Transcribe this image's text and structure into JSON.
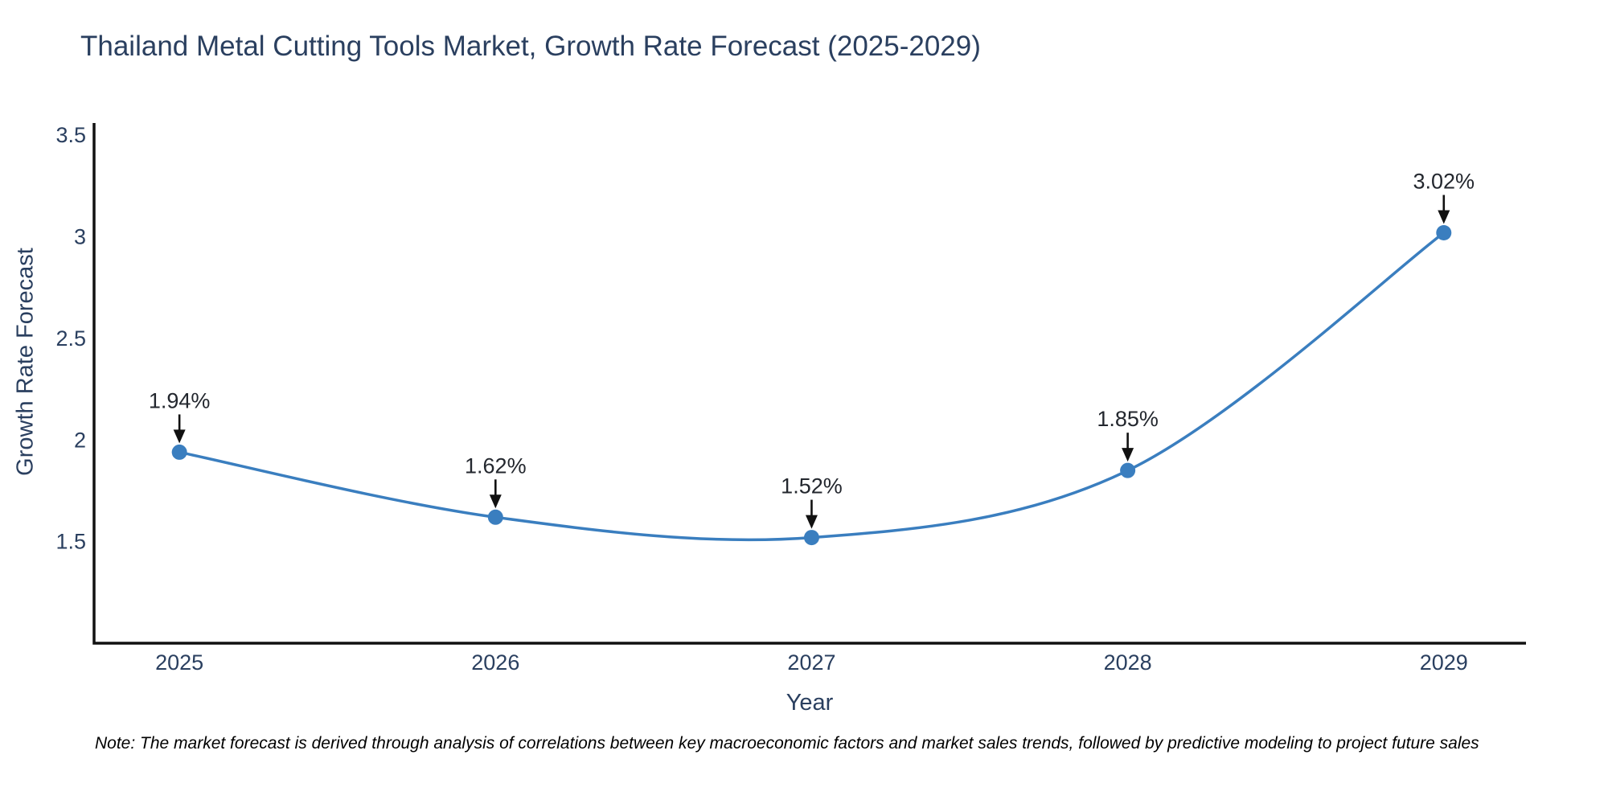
{
  "header": {
    "title": "Thailand Metal Cutting Tools Market, Growth Rate Forecast (2025-2029)"
  },
  "footnote": {
    "text": "Note: The market forecast is derived through analysis of correlations between key macroeconomic factors and market sales trends, followed by predictive modeling to project future sales"
  },
  "chart_data": {
    "type": "line",
    "line_shape": "spline",
    "title": "Thailand Metal Cutting Tools Market, Growth Rate Forecast (2025-2029)",
    "xlabel": "Year",
    "ylabel": "Growth Rate Forecast",
    "x": [
      2025,
      2026,
      2027,
      2028,
      2029
    ],
    "values": [
      1.94,
      1.62,
      1.52,
      1.85,
      3.02
    ],
    "point_labels": [
      "1.94%",
      "1.62%",
      "1.52%",
      "1.85%",
      "3.02%"
    ],
    "xtick_labels": [
      "2025",
      "2026",
      "2027",
      "2028",
      "2029"
    ],
    "yticks": [
      1.5,
      2,
      2.5,
      3,
      3.5
    ],
    "ytick_labels": [
      "1.5",
      "2",
      "2.5",
      "3",
      "3.5"
    ],
    "xlim": [
      2024.73,
      2029.26
    ],
    "ylim": [
      1.0,
      3.56
    ],
    "grid": false,
    "legend": "none",
    "annotations_have_arrows": true,
    "colors": {
      "line": "#3a7ebf",
      "marker": "#3a7ebf",
      "axis": "#111111",
      "tick_text": "#2a3f5f",
      "annotation_text": "#23272e",
      "arrow": "#111111",
      "title_text": "#2a3f5f",
      "background": "#ffffff"
    }
  }
}
